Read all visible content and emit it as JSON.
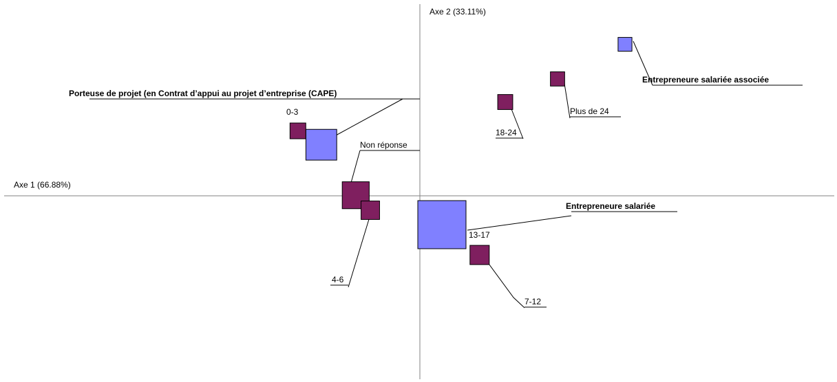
{
  "chart_data": {
    "type": "scatter",
    "title": "",
    "xlabel": "Axe 1 (66.88%)",
    "ylabel": "Axe 2 (33.11%)",
    "xlim": [
      -1.45,
      1.45
    ],
    "ylim": [
      -0.67,
      0.62
    ],
    "grid": false,
    "legend": "none",
    "colors": {
      "statut": "#8080ff",
      "anciennete": "#7f1f5f",
      "axis": "#808080"
    },
    "series": [
      {
        "group": "statut",
        "color": "#8080ff",
        "points": [
          {
            "label": "Entrepreneure salariée associée",
            "bold": true,
            "x": 0.745,
            "y": 0.525,
            "weight": 0.11
          },
          {
            "label": "Porteuse de projet (en Contrat d’appui au projet d’entreprise (CAPE)",
            "bold": true,
            "x": -0.358,
            "y": 0.177,
            "weight": 0.55
          },
          {
            "label": "Entrepreneure salariée",
            "bold": true,
            "x": 0.08,
            "y": -0.1,
            "weight": 1.0
          }
        ]
      },
      {
        "group": "anciennete",
        "color": "#7f1f5f",
        "points": [
          {
            "label": "Plus de 24",
            "bold": false,
            "x": 0.5,
            "y": 0.405,
            "weight": 0.12
          },
          {
            "label": "18-24",
            "bold": false,
            "x": 0.31,
            "y": 0.325,
            "weight": 0.14
          },
          {
            "label": "0-3",
            "bold": false,
            "x": -0.443,
            "y": 0.225,
            "weight": 0.16
          },
          {
            "label": "Non réponse",
            "bold": false,
            "x": -0.233,
            "y": 0.002,
            "weight": 0.45
          },
          {
            "label": "4-6",
            "bold": false,
            "x": -0.18,
            "y": -0.05,
            "weight": 0.23
          },
          {
            "label": "13-17",
            "bold": false,
            "x": 0.08,
            "y": -0.1,
            "weight": 0.0
          },
          {
            "label": "7-12",
            "bold": false,
            "x": 0.217,
            "y": -0.205,
            "weight": 0.25
          }
        ]
      }
    ]
  }
}
